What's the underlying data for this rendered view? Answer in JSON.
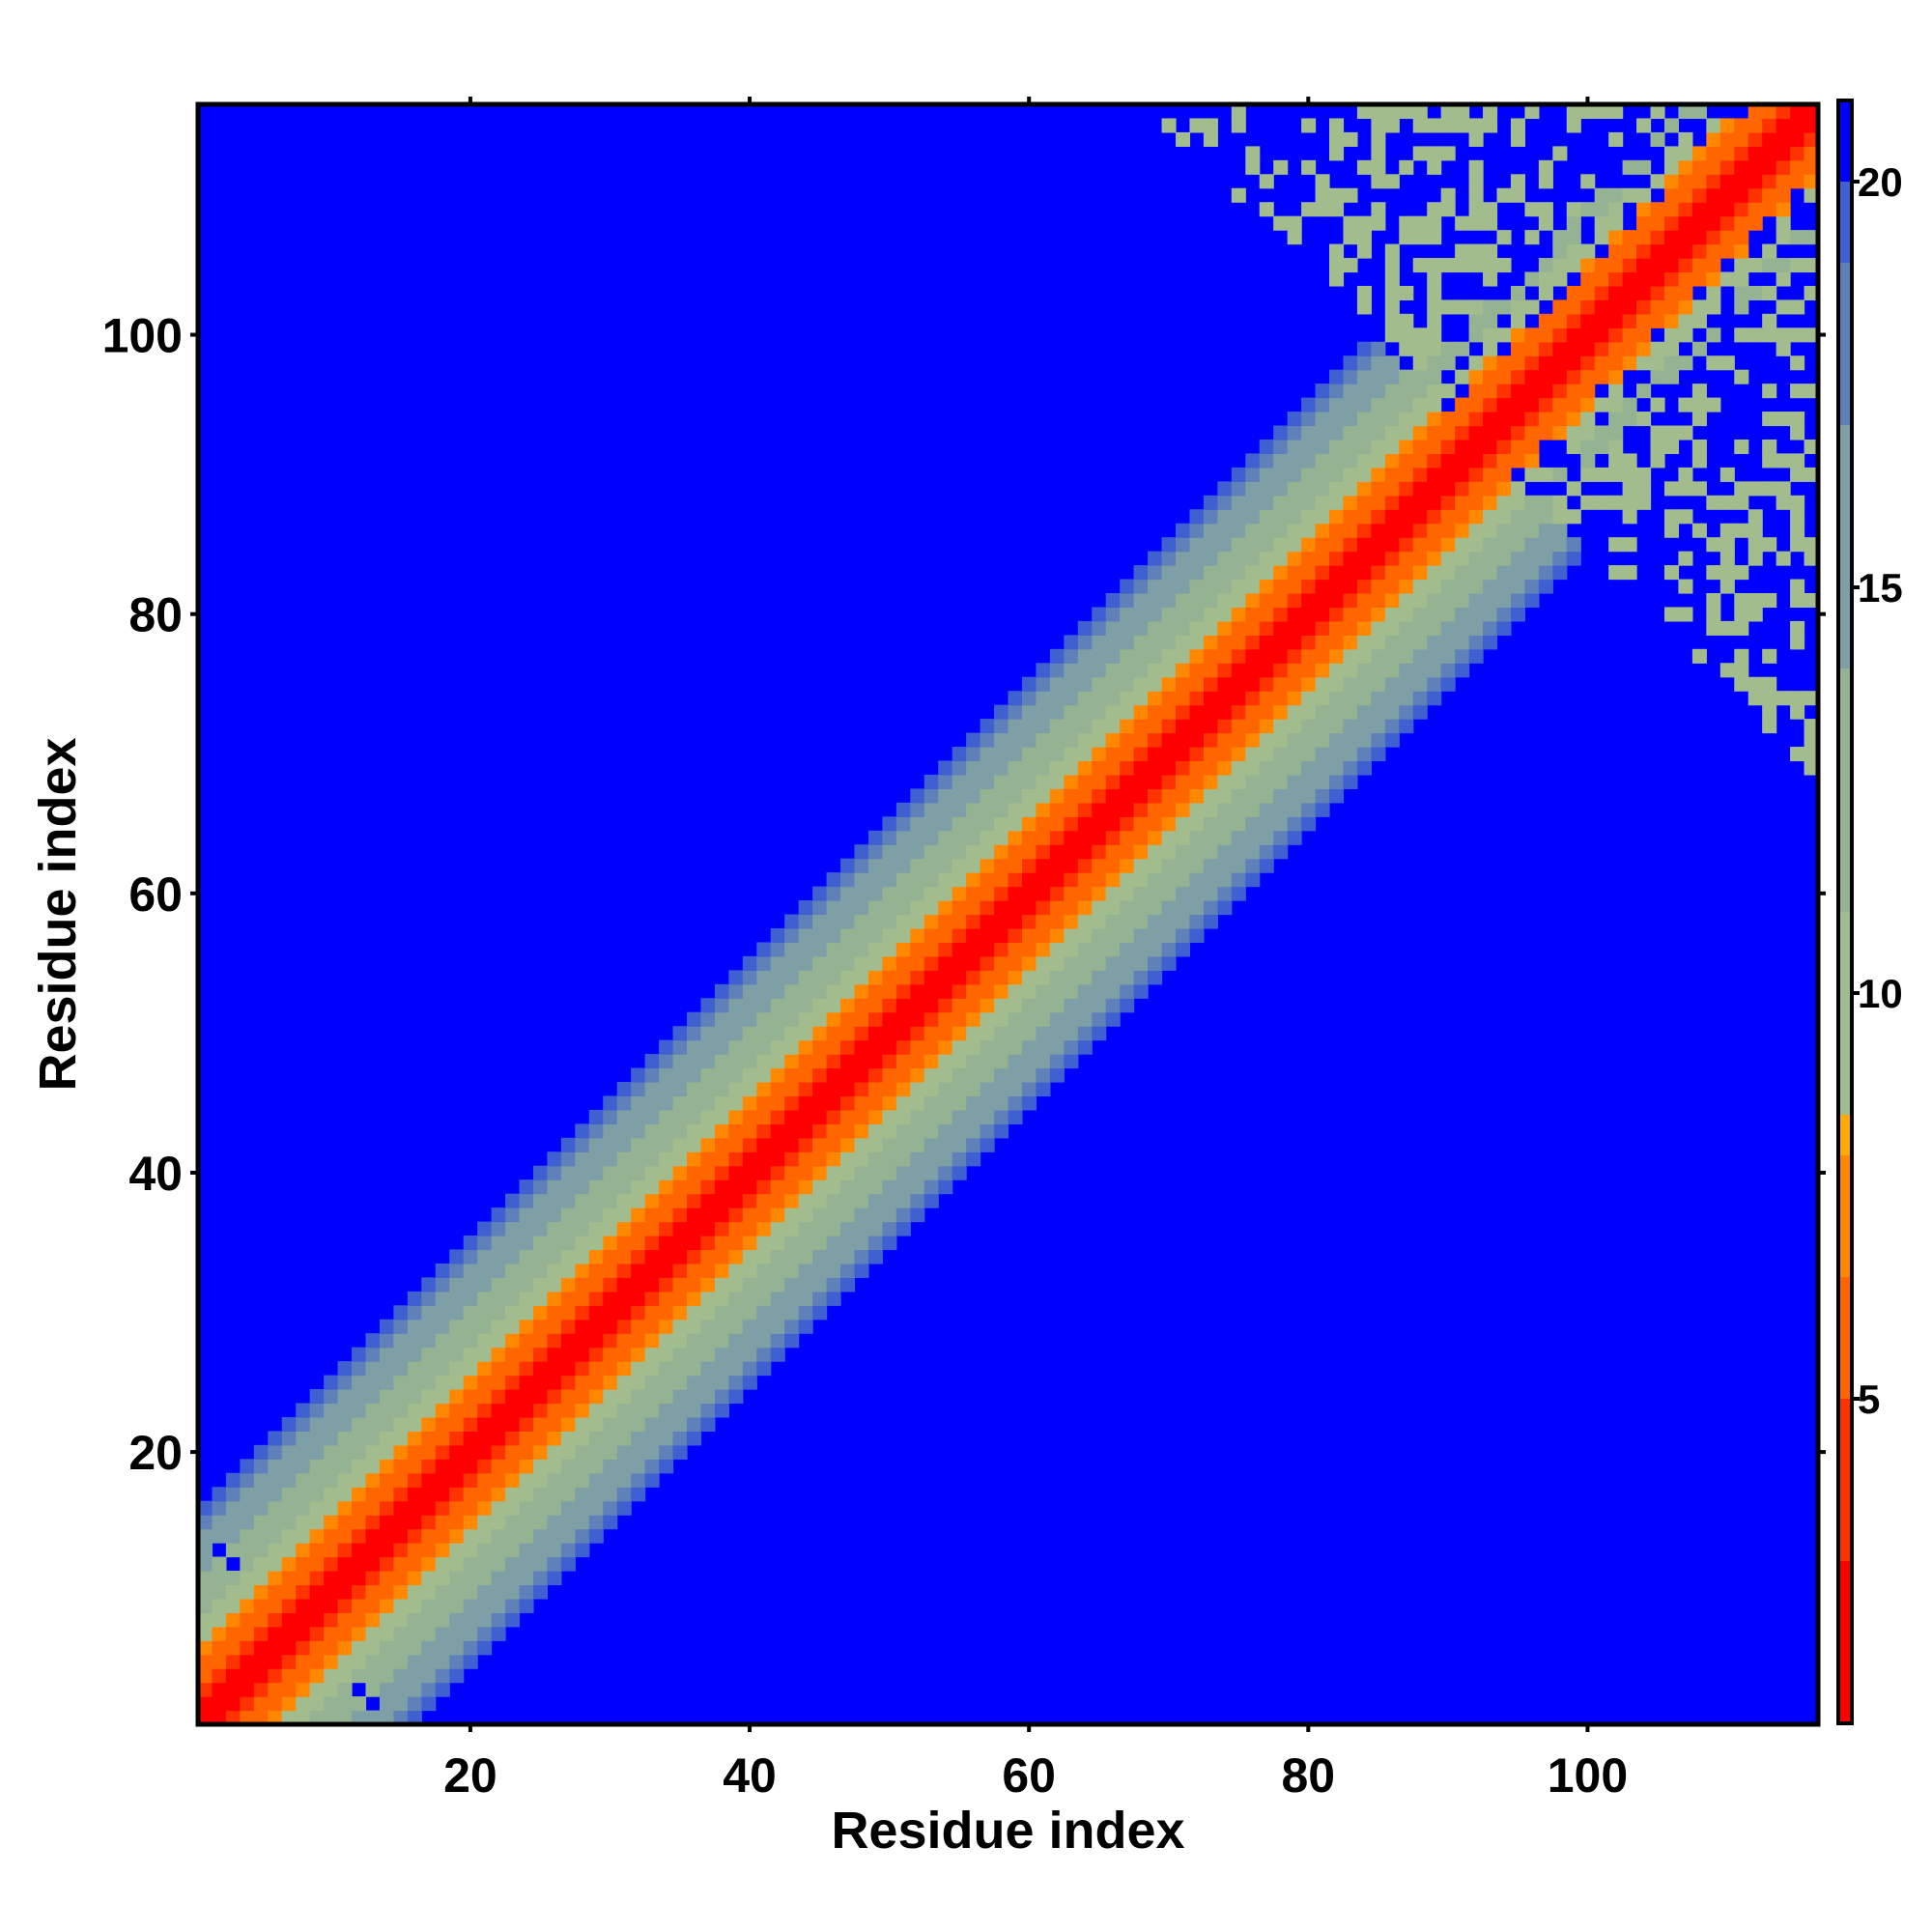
{
  "chart_data": {
    "type": "heatmap",
    "title": "",
    "xlabel": "Residue index",
    "ylabel": "Residue index",
    "xlim": [
      1,
      116
    ],
    "ylim": [
      1,
      116
    ],
    "x_ticks": [
      20,
      40,
      60,
      80,
      100
    ],
    "y_ticks": [
      20,
      40,
      60,
      80,
      100
    ],
    "colorbar": {
      "range": [
        1,
        21
      ],
      "ticks": [
        5,
        10,
        15,
        20
      ],
      "colors": [
        {
          "from": 1,
          "to": 3,
          "color": "#ff0000"
        },
        {
          "from": 3,
          "to": 5,
          "color": "#ff3300"
        },
        {
          "from": 5,
          "to": 6.5,
          "color": "#ff6600"
        },
        {
          "from": 6.5,
          "to": 8,
          "color": "#ff8800"
        },
        {
          "from": 8,
          "to": 8.5,
          "color": "#ffaa00"
        },
        {
          "from": 8.5,
          "to": 11,
          "color": "#a3bc8e"
        },
        {
          "from": 11,
          "to": 14,
          "color": "#95b392"
        },
        {
          "from": 14,
          "to": 17,
          "color": "#7f9fa6"
        },
        {
          "from": 17,
          "to": 19,
          "color": "#5f80b8"
        },
        {
          "from": 19,
          "to": 20,
          "color": "#3f60d0"
        },
        {
          "from": 20,
          "to": 21,
          "color": "#0000ff"
        }
      ]
    },
    "n_residues": 116,
    "background_color": "#0000ff",
    "description_of_values": "symmetric distance map: value grows with |i-j|, saturating at ~21 beyond ~13 residues from the diagonal"
  }
}
